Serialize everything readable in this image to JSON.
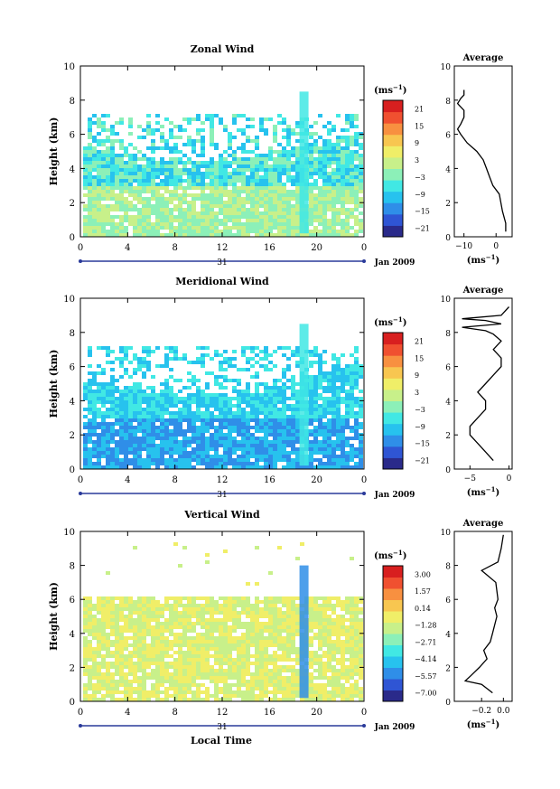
{
  "figure": {
    "xlabel": "Local Time",
    "date_label": "Jan 2009",
    "day_label": "31",
    "profile_title": "Average",
    "unit_label": "(ms",
    "unit_exp": "−1",
    "unit_close": ")"
  },
  "chart_data": [
    {
      "type": "heatmap",
      "title": "Zonal Wind",
      "ylabel": "Height (km)",
      "xlim": [
        0,
        24
      ],
      "ylim": [
        0,
        10
      ],
      "xticks": [
        "0",
        "4",
        "8",
        "12",
        "16",
        "20",
        "0"
      ],
      "yticks": [
        "0",
        "2",
        "4",
        "6",
        "8",
        "10"
      ],
      "colorbar": {
        "unit": "(ms−1)",
        "ticks": [
          "21",
          "15",
          "9",
          "3",
          "−3",
          "−9",
          "−15",
          "−21"
        ],
        "range": [
          -24,
          24
        ]
      },
      "profile": {
        "xlim": [
          -13,
          5
        ],
        "xticks": [
          "−10",
          "0"
        ],
        "x": [
          3,
          3,
          2,
          1,
          -1,
          -2,
          -3,
          -4,
          -6,
          -9,
          -11,
          -12,
          -11,
          -10,
          -10,
          -12,
          -11,
          -10,
          -10
        ],
        "y": [
          0.3,
          0.8,
          1.5,
          2.5,
          3.0,
          3.5,
          4.0,
          4.5,
          5.0,
          5.5,
          6.0,
          6.3,
          6.6,
          7.0,
          7.4,
          7.8,
          8.1,
          8.3,
          8.6
        ]
      }
    },
    {
      "type": "heatmap",
      "title": "Meridional Wind",
      "ylabel": "Height (km)",
      "xlim": [
        0,
        24
      ],
      "ylim": [
        0,
        10
      ],
      "xticks": [
        "0",
        "4",
        "8",
        "12",
        "16",
        "20",
        "0"
      ],
      "yticks": [
        "0",
        "2",
        "4",
        "6",
        "8",
        "10"
      ],
      "colorbar": {
        "unit": "(ms−1)",
        "ticks": [
          "21",
          "15",
          "9",
          "3",
          "−3",
          "−9",
          "−15",
          "−21"
        ],
        "range": [
          -24,
          24
        ]
      },
      "profile": {
        "xlim": [
          -7,
          0.4
        ],
        "xticks": [
          "−5",
          "0"
        ],
        "x": [
          -2,
          -3,
          -4,
          -5,
          -5,
          -4,
          -3,
          -3,
          -4,
          -3,
          -2,
          -1,
          -1,
          -2,
          -1,
          -2,
          -3,
          -6,
          -1,
          -3,
          -6,
          -1,
          0
        ],
        "y": [
          0.5,
          1.0,
          1.5,
          2.0,
          2.5,
          3.0,
          3.5,
          4.0,
          4.5,
          5.0,
          5.5,
          6.0,
          6.5,
          7.0,
          7.5,
          7.9,
          8.1,
          8.3,
          8.5,
          8.7,
          8.8,
          9.0,
          9.5
        ]
      }
    },
    {
      "type": "heatmap",
      "title": "Vertical Wind",
      "ylabel": "Height (km)",
      "xlim": [
        0,
        24
      ],
      "ylim": [
        0,
        10
      ],
      "xticks": [
        "0",
        "4",
        "8",
        "12",
        "16",
        "20",
        "0"
      ],
      "yticks": [
        "0",
        "2",
        "4",
        "6",
        "8",
        "10"
      ],
      "colorbar": {
        "unit": "(ms−1)",
        "ticks": [
          "3.00",
          "1.57",
          "0.14",
          "−1.28",
          "−2.71",
          "−4.14",
          "−5.57",
          "−7.00"
        ],
        "range": [
          -7.0,
          3.0
        ]
      },
      "profile": {
        "xlim": [
          -0.45,
          0.08
        ],
        "xticks": [
          "−0.2",
          "0.0"
        ],
        "x": [
          -0.1,
          -0.2,
          -0.35,
          -0.3,
          -0.22,
          -0.15,
          -0.18,
          -0.12,
          -0.1,
          -0.08,
          -0.06,
          -0.08,
          -0.05,
          -0.07,
          -0.2,
          -0.05,
          -0.02,
          0.0
        ],
        "y": [
          0.5,
          1.0,
          1.2,
          1.5,
          2.0,
          2.5,
          3.0,
          3.5,
          4.0,
          4.5,
          5.0,
          5.5,
          6.0,
          7.0,
          7.7,
          8.2,
          9.0,
          9.8
        ]
      }
    }
  ]
}
